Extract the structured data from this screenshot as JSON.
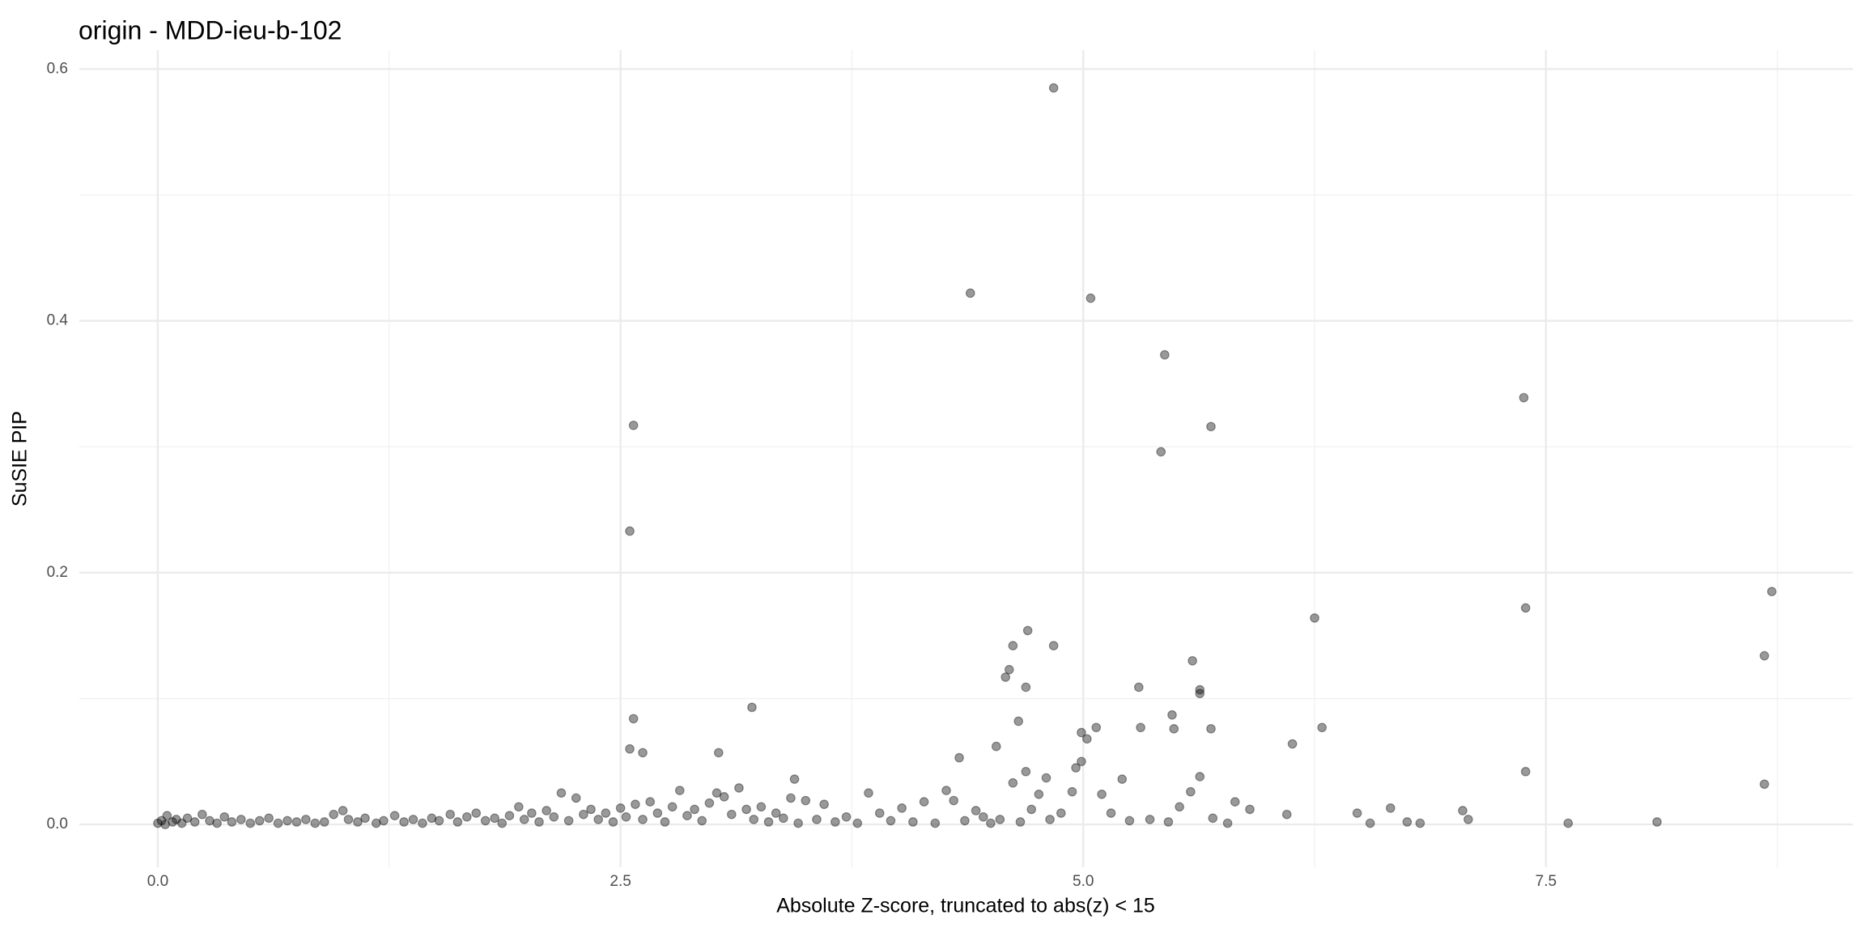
{
  "chart_data": {
    "type": "scatter",
    "title": "origin - MDD-ieu-b-102",
    "x_label": "Absolute Z-score, truncated to abs(z) < 15",
    "y_label": "SuSIE PIP",
    "color": "#000000",
    "alpha": 0.4,
    "grid": true,
    "xlim": [
      -0.424,
      9.158
    ],
    "ylim": [
      -0.034,
      0.615
    ],
    "xticks": [
      {
        "value": 0,
        "label": "0.0"
      },
      2.5,
      {
        "value": 5,
        "label": "5.0"
      },
      7.5
    ],
    "yticks": [
      {
        "value": 0,
        "label": "0.0"
      },
      0.2,
      0.4,
      0.6
    ],
    "x": [
      4.84,
      4.39,
      5.04,
      5.44,
      2.57,
      5.69,
      7.38,
      2.55,
      5.42,
      8.72,
      7.39,
      6.25,
      4.7,
      4.62,
      4.84,
      8.68,
      5.59,
      5.3,
      4.6,
      4.58,
      4.69,
      5.63,
      5.63,
      3.21,
      2.57,
      4.65,
      5.48,
      5.07,
      5.31,
      5.49,
      5.69,
      6.29,
      4.99,
      5.02,
      6.13,
      2.55,
      2.62,
      3.03,
      4.53,
      4.33,
      4.99,
      4.96,
      4.69,
      7.39,
      8.68,
      3.44,
      5.63,
      5.21,
      4.8,
      0.0,
      0.02,
      0.04,
      0.05,
      0.08,
      0.1,
      0.13,
      0.16,
      0.2,
      0.24,
      0.28,
      0.32,
      0.36,
      0.4,
      0.45,
      0.5,
      0.55,
      0.6,
      0.65,
      0.7,
      0.75,
      0.8,
      0.85,
      0.9,
      0.95,
      1.0,
      1.03,
      1.08,
      1.12,
      1.18,
      1.22,
      1.28,
      1.33,
      1.38,
      1.43,
      1.48,
      1.52,
      1.58,
      1.62,
      1.67,
      1.72,
      1.77,
      1.82,
      1.86,
      1.9,
      1.95,
      1.98,
      2.02,
      2.06,
      2.1,
      2.14,
      2.18,
      2.22,
      2.26,
      2.3,
      2.34,
      2.38,
      2.42,
      2.46,
      2.5,
      2.53,
      2.58,
      2.62,
      2.66,
      2.7,
      2.74,
      2.78,
      2.82,
      2.86,
      2.9,
      2.94,
      2.98,
      3.02,
      3.06,
      3.1,
      3.14,
      3.18,
      3.22,
      3.26,
      3.3,
      3.34,
      3.38,
      3.42,
      3.46,
      3.5,
      3.56,
      3.6,
      3.66,
      3.72,
      3.78,
      3.84,
      3.9,
      3.96,
      4.02,
      4.08,
      4.14,
      4.2,
      4.26,
      4.3,
      4.36,
      4.42,
      4.46,
      4.5,
      4.55,
      4.62,
      4.66,
      4.72,
      4.76,
      4.82,
      4.88,
      4.94,
      5.1,
      5.15,
      5.25,
      5.36,
      5.46,
      5.52,
      5.58,
      5.7,
      5.78,
      5.82,
      5.9,
      6.1,
      6.48,
      6.55,
      6.66,
      6.75,
      6.82,
      7.05,
      7.08,
      7.62,
      8.1
    ],
    "values": [
      0.585,
      0.422,
      0.418,
      0.373,
      0.317,
      0.316,
      0.339,
      0.233,
      0.296,
      0.185,
      0.172,
      0.164,
      0.154,
      0.142,
      0.142,
      0.134,
      0.13,
      0.109,
      0.123,
      0.117,
      0.109,
      0.107,
      0.104,
      0.093,
      0.084,
      0.082,
      0.087,
      0.077,
      0.077,
      0.076,
      0.076,
      0.077,
      0.073,
      0.068,
      0.064,
      0.06,
      0.057,
      0.057,
      0.062,
      0.053,
      0.05,
      0.045,
      0.042,
      0.042,
      0.032,
      0.036,
      0.038,
      0.036,
      0.037,
      0.001,
      0.003,
      0.0,
      0.007,
      0.002,
      0.004,
      0.001,
      0.005,
      0.002,
      0.008,
      0.003,
      0.001,
      0.006,
      0.002,
      0.004,
      0.001,
      0.003,
      0.005,
      0.001,
      0.003,
      0.002,
      0.004,
      0.001,
      0.002,
      0.008,
      0.011,
      0.004,
      0.002,
      0.005,
      0.001,
      0.003,
      0.007,
      0.002,
      0.004,
      0.001,
      0.005,
      0.003,
      0.008,
      0.002,
      0.006,
      0.009,
      0.003,
      0.005,
      0.001,
      0.007,
      0.014,
      0.004,
      0.009,
      0.002,
      0.011,
      0.006,
      0.025,
      0.003,
      0.021,
      0.008,
      0.012,
      0.004,
      0.009,
      0.002,
      0.013,
      0.006,
      0.016,
      0.004,
      0.018,
      0.009,
      0.002,
      0.014,
      0.027,
      0.007,
      0.012,
      0.003,
      0.017,
      0.025,
      0.022,
      0.008,
      0.029,
      0.012,
      0.004,
      0.014,
      0.002,
      0.009,
      0.005,
      0.021,
      0.001,
      0.019,
      0.004,
      0.016,
      0.002,
      0.006,
      0.001,
      0.025,
      0.009,
      0.003,
      0.013,
      0.002,
      0.018,
      0.001,
      0.027,
      0.019,
      0.003,
      0.011,
      0.006,
      0.001,
      0.004,
      0.033,
      0.002,
      0.012,
      0.024,
      0.004,
      0.009,
      0.026,
      0.024,
      0.009,
      0.003,
      0.004,
      0.002,
      0.014,
      0.026,
      0.005,
      0.001,
      0.018,
      0.012,
      0.008,
      0.009,
      0.001,
      0.013,
      0.002,
      0.001,
      0.011,
      0.004,
      0.001,
      0.002
    ]
  }
}
